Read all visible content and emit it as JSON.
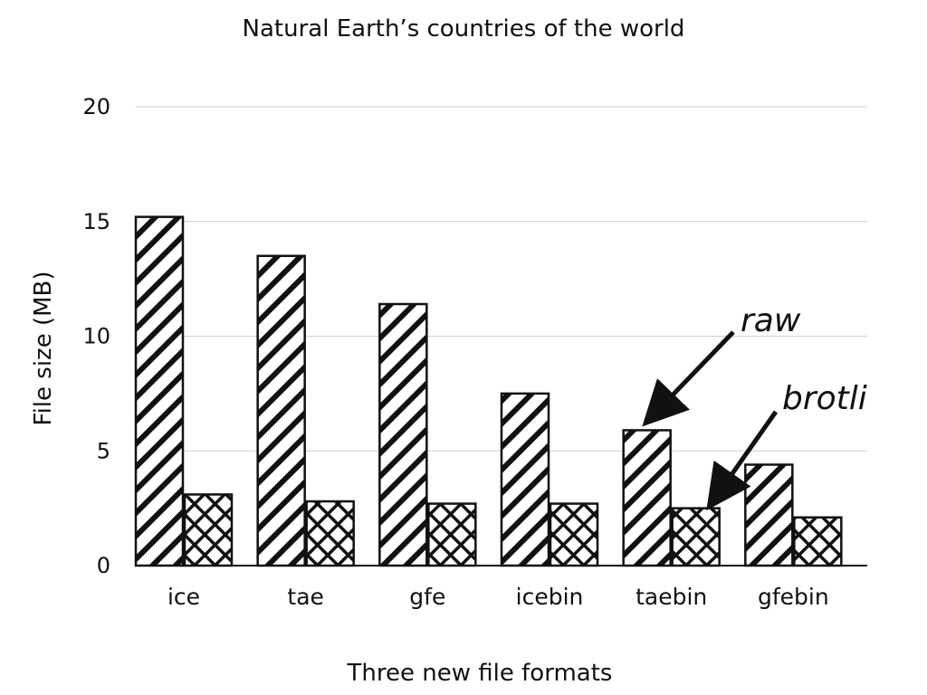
{
  "chart_data": {
    "type": "bar",
    "title": "Natural Earth’s countries of the world",
    "xlabel": "Three new file formats",
    "ylabel": "File size (MB)",
    "ylim": [
      0,
      20
    ],
    "yticks": [
      "0",
      "5",
      "10",
      "15",
      "20"
    ],
    "grid": true,
    "categories": [
      "ice",
      "tae",
      "gfe",
      "icebin",
      "taebin",
      "gfebin"
    ],
    "series": [
      {
        "values": [
          15.2,
          13.5,
          11.4,
          7.5,
          5.9,
          4.4
        ],
        "pattern": "diagonal-hatch"
      },
      {
        "values": [
          3.1,
          2.8,
          2.7,
          2.7,
          2.5,
          2.1
        ],
        "pattern": "crosshatch"
      }
    ],
    "annotations": [
      {
        "text": "raw",
        "target_category": "taebin",
        "target_series": 0
      },
      {
        "text": "brotli",
        "target_category": "taebin",
        "target_series": 1
      }
    ],
    "colors": {
      "bar_fill": "#ffffff",
      "bar_stroke": "#111111",
      "grid": "#cfcfcf"
    }
  }
}
